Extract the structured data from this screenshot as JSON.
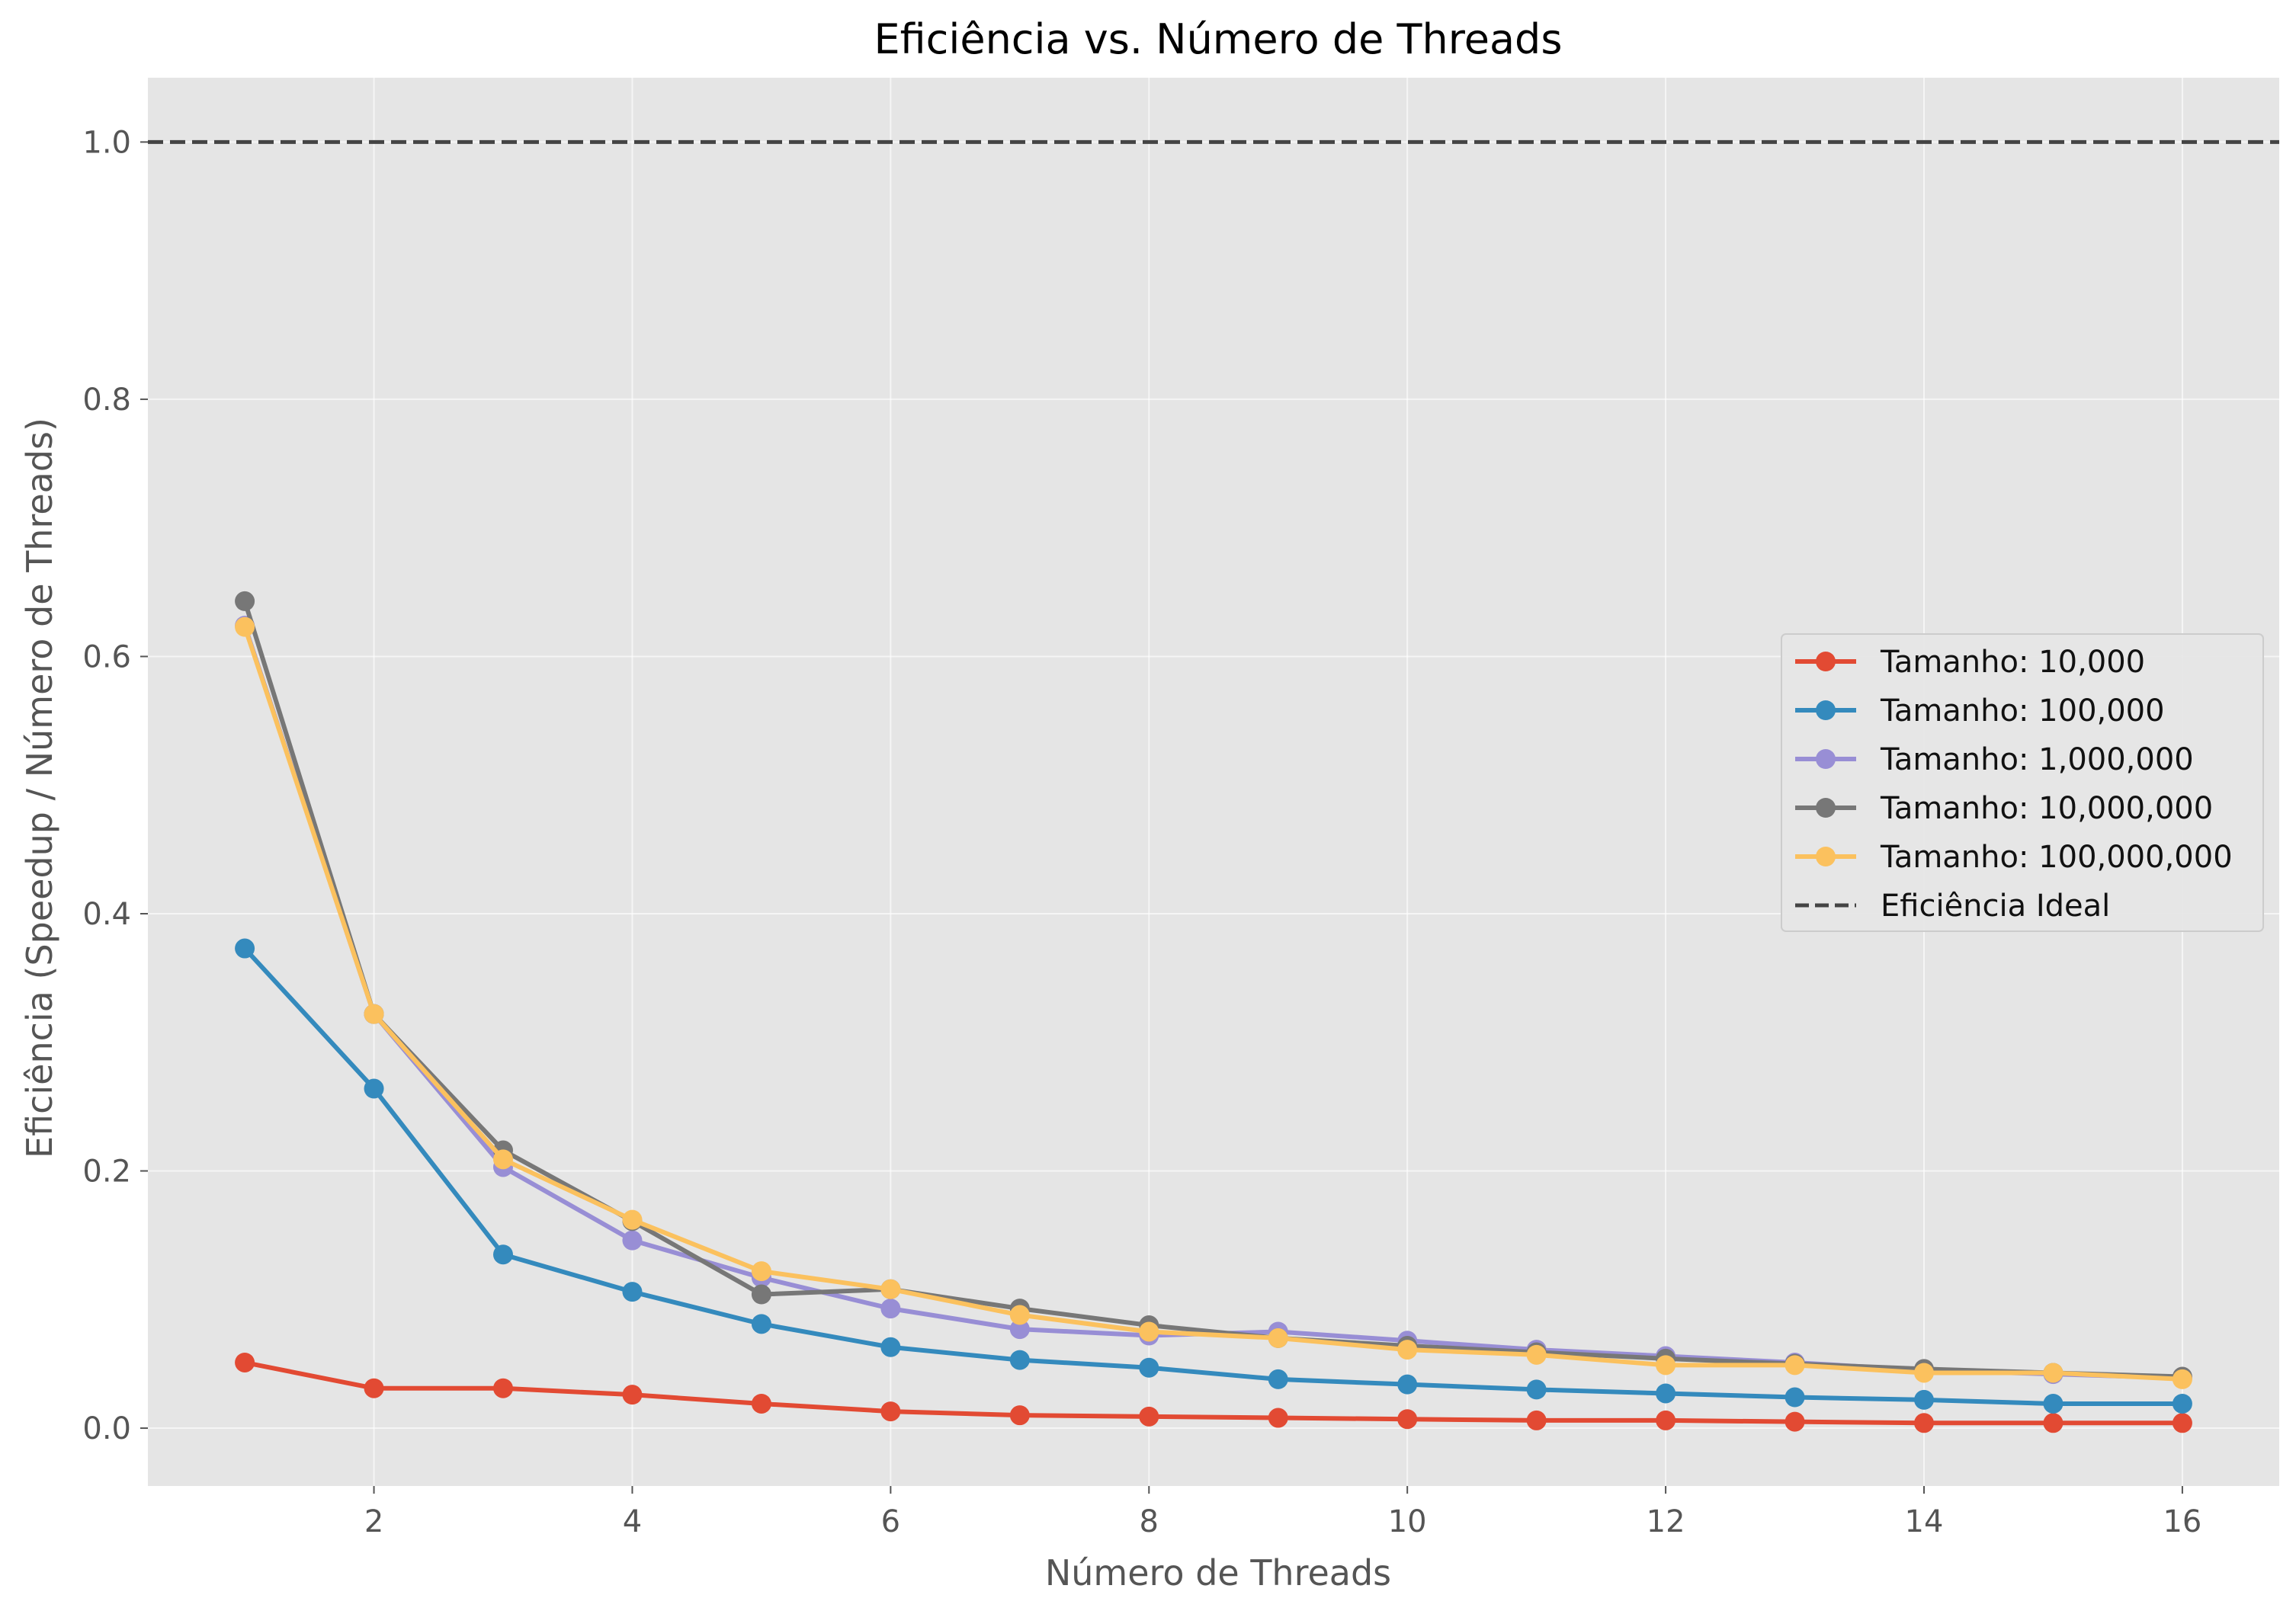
{
  "chart_data": {
    "type": "line",
    "title": "Eficiência vs. Número de Threads",
    "xlabel": "Número de Threads",
    "ylabel": "Eficiência (Speedup / Número de Threads)",
    "xlim": [
      0.25,
      16.75
    ],
    "ylim": [
      -0.045,
      1.05
    ],
    "xticks": [
      2,
      4,
      6,
      8,
      10,
      12,
      14,
      16
    ],
    "xtick_labels": [
      "2",
      "4",
      "6",
      "8",
      "10",
      "12",
      "14",
      "16"
    ],
    "yticks": [
      0.0,
      0.2,
      0.4,
      0.6,
      0.8,
      1.0
    ],
    "ytick_labels": [
      "0.0",
      "0.2",
      "0.4",
      "0.6",
      "0.8",
      "1.0"
    ],
    "grid": true,
    "legend_position": "center-right",
    "x": [
      1,
      2,
      3,
      4,
      5,
      6,
      7,
      8,
      9,
      10,
      11,
      12,
      13,
      14,
      15,
      16
    ],
    "series": [
      {
        "name": "Tamanho: 10,000",
        "color": "#E24A33",
        "values": [
          0.051,
          0.031,
          0.031,
          0.026,
          0.019,
          0.013,
          0.01,
          0.009,
          0.008,
          0.007,
          0.006,
          0.006,
          0.005,
          0.004,
          0.004,
          0.004
        ]
      },
      {
        "name": "Tamanho: 100,000",
        "color": "#348ABD",
        "values": [
          0.373,
          0.264,
          0.135,
          0.106,
          0.081,
          0.063,
          0.053,
          0.047,
          0.038,
          0.034,
          0.03,
          0.027,
          0.024,
          0.022,
          0.019,
          0.019
        ]
      },
      {
        "name": "Tamanho: 1,000,000",
        "color": "#988ED5",
        "values": [
          0.624,
          0.322,
          0.203,
          0.146,
          0.117,
          0.093,
          0.077,
          0.072,
          0.075,
          0.068,
          0.061,
          0.056,
          0.051,
          0.045,
          0.042,
          0.039
        ]
      },
      {
        "name": "Tamanho: 10,000,000",
        "color": "#777777",
        "values": [
          0.643,
          0.322,
          0.216,
          0.161,
          0.104,
          0.108,
          0.093,
          0.08,
          0.07,
          0.064,
          0.059,
          0.054,
          0.05,
          0.046,
          0.043,
          0.04
        ]
      },
      {
        "name": "Tamanho: 100,000,000",
        "color": "#FBC15E",
        "values": [
          0.623,
          0.322,
          0.209,
          0.162,
          0.122,
          0.108,
          0.088,
          0.075,
          0.07,
          0.061,
          0.057,
          0.049,
          0.049,
          0.043,
          0.043,
          0.038
        ]
      }
    ],
    "reference_line": {
      "name": "Eficiência Ideal",
      "y": 1.0,
      "color": "#444444",
      "style": "dashed"
    }
  }
}
